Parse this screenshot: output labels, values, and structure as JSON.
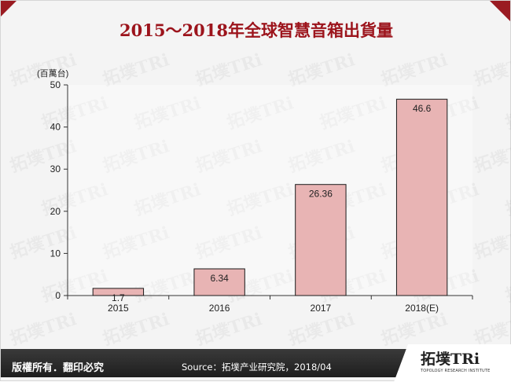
{
  "slide": {
    "title": "2015～2018年全球智慧音箱出貨量",
    "copyright": "版權所有．翻印必究",
    "source": "Source：拓墣产业研究院，2018/04",
    "logo": {
      "main": "拓墣TRi",
      "sub": "TOPOLOGY RESEARCH INSTITUTE"
    },
    "watermark": "拓墣TRi",
    "accent_color": "#9c141c",
    "footer_color": "#2b2b2b"
  },
  "chart_data": {
    "type": "bar",
    "title": "2015～2018年全球智慧音箱出貨量",
    "unit_label": "(百萬台)",
    "categories": [
      "2015",
      "2016",
      "2017",
      "2018(E)"
    ],
    "values": [
      1.7,
      6.34,
      26.36,
      46.6
    ],
    "value_labels": [
      "1.7",
      "6.34",
      "26.36",
      "46.6"
    ],
    "ylim": [
      0,
      50
    ],
    "yticks": [
      0,
      10,
      20,
      30,
      40,
      50
    ],
    "bar_color": "#e8b4b4",
    "bar_edge_color": "#1a1a1a",
    "grid": false,
    "legend": "none"
  }
}
